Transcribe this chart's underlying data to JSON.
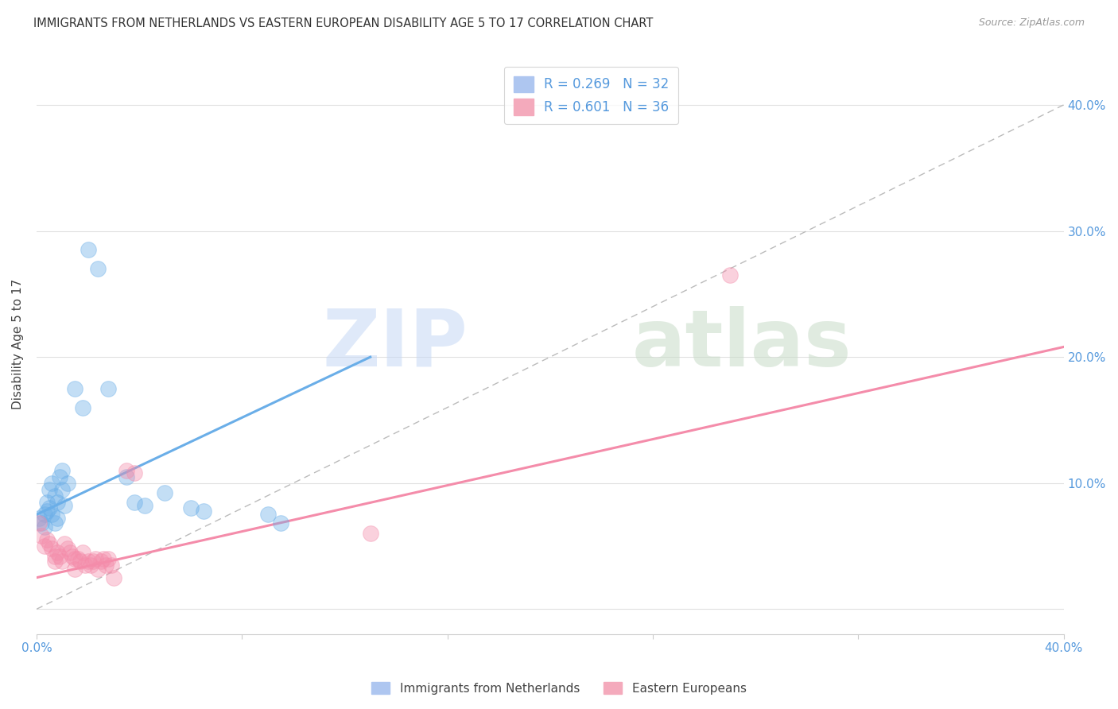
{
  "title": "IMMIGRANTS FROM NETHERLANDS VS EASTERN EUROPEAN DISABILITY AGE 5 TO 17 CORRELATION CHART",
  "source": "Source: ZipAtlas.com",
  "ylabel": "Disability Age 5 to 17",
  "x_min": 0.0,
  "x_max": 0.4,
  "y_min": -0.02,
  "y_max": 0.44,
  "x_ticks": [
    0.0,
    0.08,
    0.16,
    0.24,
    0.32,
    0.4
  ],
  "y_ticks": [
    0.0,
    0.1,
    0.2,
    0.3,
    0.4
  ],
  "y_tick_labels": [
    "",
    "10.0%",
    "20.0%",
    "30.0%",
    "40.0%"
  ],
  "watermark_zip": "ZIP",
  "watermark_atlas": "atlas",
  "blue_color": "#6aaee8",
  "pink_color": "#f48caa",
  "blue_scatter": [
    [
      0.001,
      0.072
    ],
    [
      0.002,
      0.068
    ],
    [
      0.003,
      0.075
    ],
    [
      0.003,
      0.065
    ],
    [
      0.004,
      0.085
    ],
    [
      0.004,
      0.078
    ],
    [
      0.005,
      0.095
    ],
    [
      0.005,
      0.08
    ],
    [
      0.006,
      0.1
    ],
    [
      0.006,
      0.075
    ],
    [
      0.007,
      0.09
    ],
    [
      0.007,
      0.068
    ],
    [
      0.008,
      0.085
    ],
    [
      0.008,
      0.072
    ],
    [
      0.009,
      0.105
    ],
    [
      0.01,
      0.11
    ],
    [
      0.01,
      0.095
    ],
    [
      0.011,
      0.082
    ],
    [
      0.012,
      0.1
    ],
    [
      0.015,
      0.175
    ],
    [
      0.018,
      0.16
    ],
    [
      0.02,
      0.285
    ],
    [
      0.024,
      0.27
    ],
    [
      0.028,
      0.175
    ],
    [
      0.035,
      0.105
    ],
    [
      0.038,
      0.085
    ],
    [
      0.042,
      0.082
    ],
    [
      0.05,
      0.092
    ],
    [
      0.06,
      0.08
    ],
    [
      0.065,
      0.078
    ],
    [
      0.09,
      0.075
    ],
    [
      0.095,
      0.068
    ]
  ],
  "pink_scatter": [
    [
      0.001,
      0.068
    ],
    [
      0.002,
      0.058
    ],
    [
      0.003,
      0.05
    ],
    [
      0.004,
      0.055
    ],
    [
      0.005,
      0.052
    ],
    [
      0.006,
      0.048
    ],
    [
      0.007,
      0.042
    ],
    [
      0.007,
      0.038
    ],
    [
      0.008,
      0.045
    ],
    [
      0.009,
      0.042
    ],
    [
      0.01,
      0.038
    ],
    [
      0.011,
      0.052
    ],
    [
      0.012,
      0.048
    ],
    [
      0.013,
      0.045
    ],
    [
      0.014,
      0.042
    ],
    [
      0.015,
      0.04
    ],
    [
      0.015,
      0.032
    ],
    [
      0.016,
      0.04
    ],
    [
      0.017,
      0.038
    ],
    [
      0.018,
      0.045
    ],
    [
      0.019,
      0.035
    ],
    [
      0.02,
      0.038
    ],
    [
      0.021,
      0.035
    ],
    [
      0.022,
      0.038
    ],
    [
      0.023,
      0.04
    ],
    [
      0.024,
      0.032
    ],
    [
      0.025,
      0.038
    ],
    [
      0.026,
      0.04
    ],
    [
      0.027,
      0.035
    ],
    [
      0.028,
      0.04
    ],
    [
      0.029,
      0.035
    ],
    [
      0.03,
      0.025
    ],
    [
      0.035,
      0.11
    ],
    [
      0.038,
      0.108
    ],
    [
      0.13,
      0.06
    ],
    [
      0.27,
      0.265
    ]
  ],
  "blue_line_x": [
    0.0,
    0.13
  ],
  "blue_line_y": [
    0.075,
    0.2
  ],
  "pink_line_x": [
    0.0,
    0.4
  ],
  "pink_line_y": [
    0.025,
    0.208
  ],
  "diag_line_x": [
    0.0,
    0.4
  ],
  "diag_line_y": [
    0.0,
    0.4
  ],
  "bottom_legend": [
    "Immigrants from Netherlands",
    "Eastern Europeans"
  ],
  "background_color": "#ffffff",
  "grid_color": "#e0e0e0"
}
